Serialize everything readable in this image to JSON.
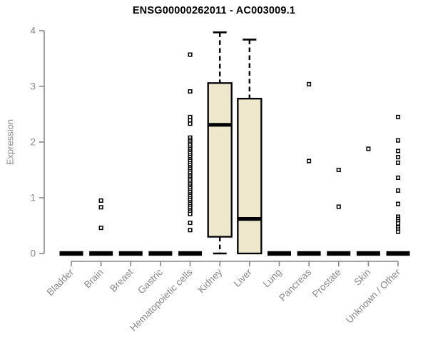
{
  "chart_data": {
    "type": "boxplot",
    "title": "ENSG00000262011 - AC003009.1",
    "ylabel": "Expression",
    "xlabel": "",
    "ylim": [
      0,
      4
    ],
    "yticks": [
      0,
      1,
      2,
      3,
      4
    ],
    "grid": false,
    "legend": "none",
    "axis_color": "#878787",
    "box_fill": "#EDE7CB",
    "box_stroke": "#000000",
    "marker": "open-square",
    "categories": [
      "Bladder",
      "Brain",
      "Breast",
      "Gastric",
      "Hematopoietic cells",
      "Kidney",
      "Liver",
      "Lung",
      "Pancreas",
      "Prostate",
      "Skin",
      "Unknown / Other"
    ],
    "boxes": [
      {
        "category": "Bladder",
        "low": 0,
        "q1": 0,
        "median": 0,
        "q3": 0,
        "high": 0,
        "outliers": []
      },
      {
        "category": "Brain",
        "low": 0,
        "q1": 0,
        "median": 0,
        "q3": 0,
        "high": 0,
        "outliers": [
          0.95,
          0.83,
          0.46
        ]
      },
      {
        "category": "Breast",
        "low": 0,
        "q1": 0,
        "median": 0,
        "q3": 0,
        "high": 0,
        "outliers": []
      },
      {
        "category": "Gastric",
        "low": 0,
        "q1": 0,
        "median": 0,
        "q3": 0,
        "high": 0,
        "outliers": []
      },
      {
        "category": "Hematopoietic cells",
        "low": 0,
        "q1": 0,
        "median": 0,
        "q3": 0,
        "high": 0,
        "outliers": [
          3.57,
          2.91,
          2.45,
          2.39,
          2.33,
          2.08,
          2.04,
          2.01,
          1.97,
          1.94,
          1.9,
          1.87,
          1.83,
          1.8,
          1.76,
          1.73,
          1.69,
          1.66,
          1.62,
          1.59,
          1.55,
          1.52,
          1.48,
          1.45,
          1.41,
          1.38,
          1.34,
          1.31,
          1.27,
          1.24,
          1.2,
          1.17,
          1.13,
          1.1,
          1.06,
          1.03,
          0.99,
          0.96,
          0.92,
          0.89,
          0.85,
          0.82,
          0.78,
          0.75,
          0.71,
          0.55,
          0.42
        ]
      },
      {
        "category": "Kidney",
        "low": 0,
        "q1": 0.3,
        "median": 2.31,
        "q3": 3.06,
        "high": 3.97,
        "outliers": []
      },
      {
        "category": "Liver",
        "low": 0,
        "q1": 0,
        "median": 0.62,
        "q3": 2.78,
        "high": 3.84,
        "outliers": []
      },
      {
        "category": "Lung",
        "low": 0,
        "q1": 0,
        "median": 0,
        "q3": 0,
        "high": 0,
        "outliers": []
      },
      {
        "category": "Pancreas",
        "low": 0,
        "q1": 0,
        "median": 0,
        "q3": 0,
        "high": 0,
        "outliers": [
          3.04,
          1.66
        ]
      },
      {
        "category": "Prostate",
        "low": 0,
        "q1": 0,
        "median": 0,
        "q3": 0,
        "high": 0,
        "outliers": [
          1.5,
          0.84
        ]
      },
      {
        "category": "Skin",
        "low": 0,
        "q1": 0,
        "median": 0,
        "q3": 0,
        "high": 0,
        "outliers": [
          1.88
        ]
      },
      {
        "category": "Unknown / Other",
        "low": 0,
        "q1": 0,
        "median": 0,
        "q3": 0,
        "high": 0,
        "outliers": [
          2.45,
          2.03,
          1.84,
          1.73,
          1.63,
          1.36,
          1.13,
          0.89,
          0.66,
          0.62,
          0.58,
          0.54,
          0.47,
          0.43,
          0.39
        ]
      }
    ]
  }
}
